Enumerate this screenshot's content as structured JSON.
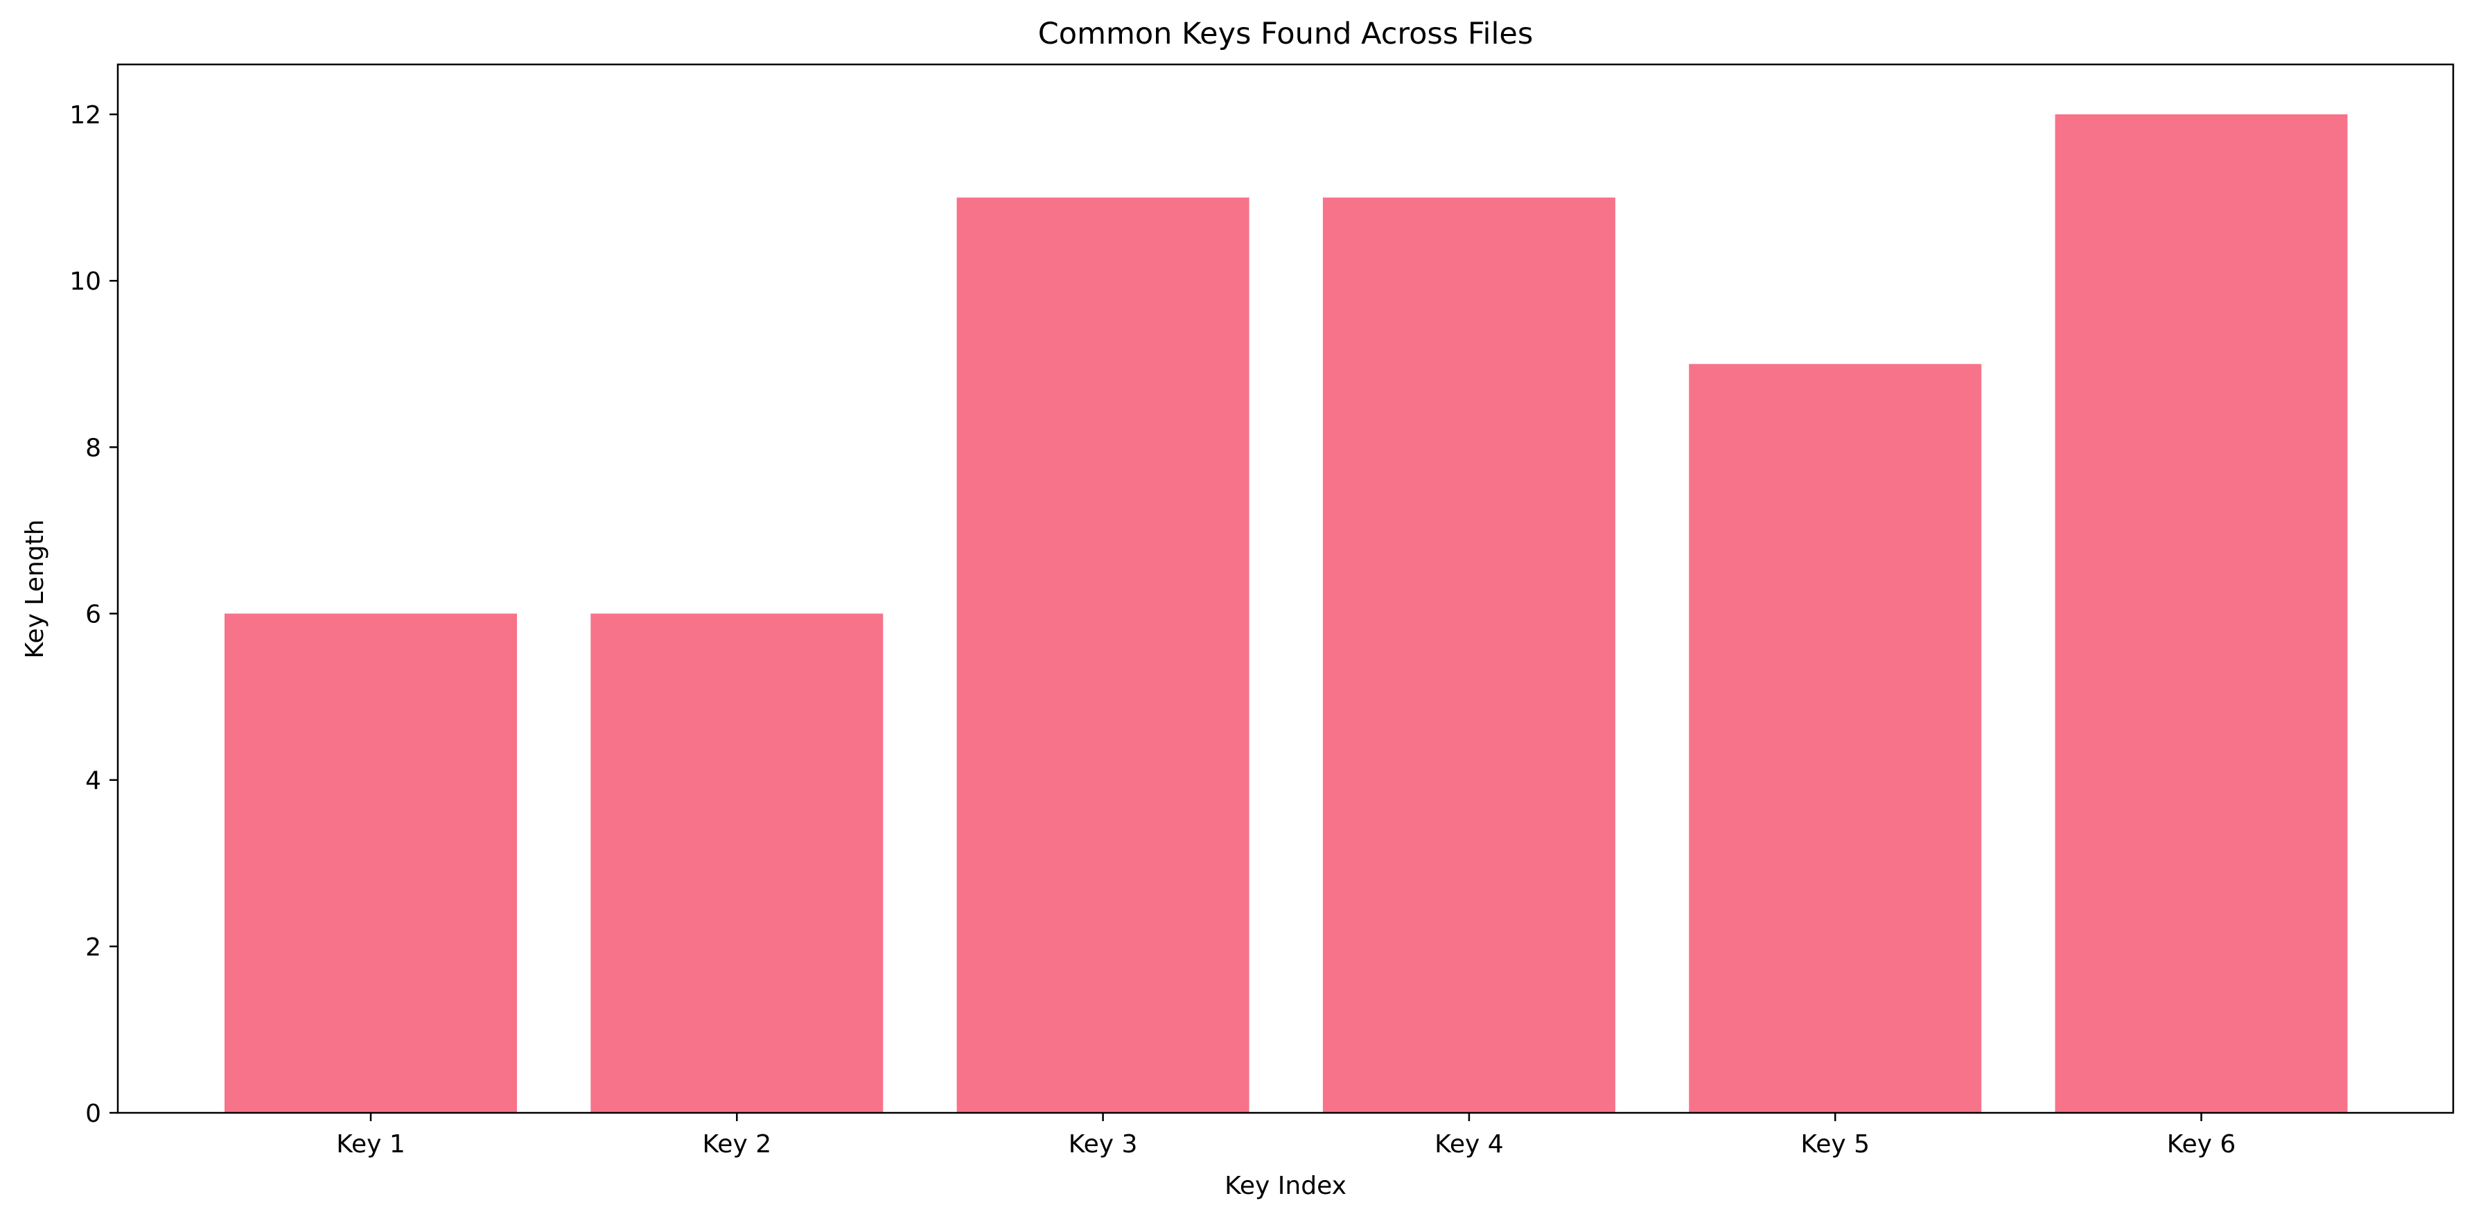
{
  "chart_data": {
    "type": "bar",
    "title": "Common Keys Found Across Files",
    "xlabel": "Key Index",
    "ylabel": "Key Length",
    "categories": [
      "Key 1",
      "Key 2",
      "Key 3",
      "Key 4",
      "Key 5",
      "Key 6"
    ],
    "values": [
      6,
      6,
      11,
      11,
      9,
      12
    ],
    "ylim": [
      0,
      12.6
    ],
    "yticks": [
      0,
      2,
      4,
      6,
      8,
      10,
      12
    ],
    "bar_color": "#f7738a",
    "grid": false,
    "legend": "none"
  }
}
